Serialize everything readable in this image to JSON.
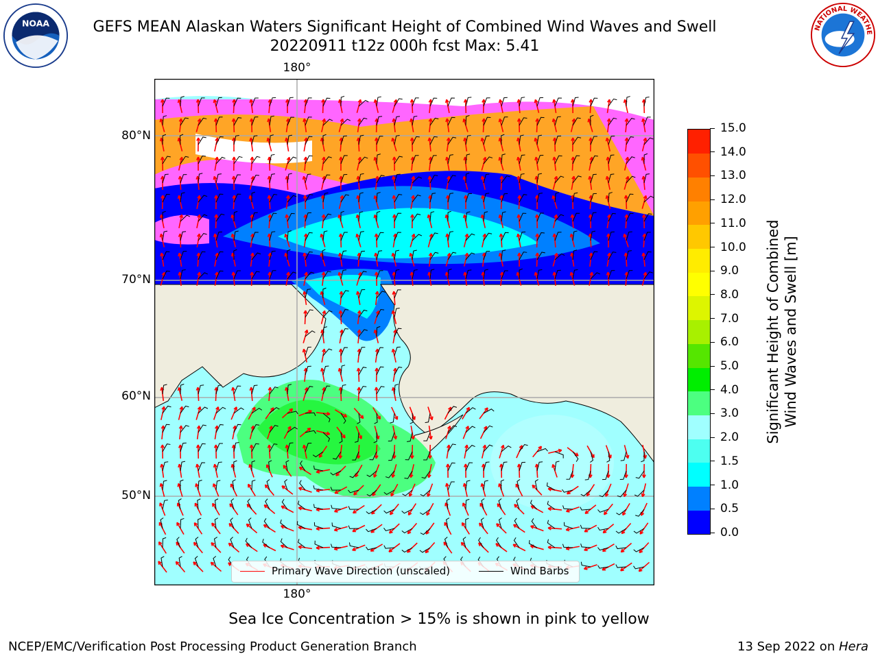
{
  "header": {
    "title_line1": "GEFS MEAN Alaskan Waters Significant Height of Combined Wind Waves and Swell",
    "title_line2": "20220911 t12z 000h fcst   Max: 5.41"
  },
  "logos": {
    "left": "noaa-logo",
    "right": "nws-logo"
  },
  "map": {
    "lon_top_label": "180°",
    "lon_bottom_label": "180°",
    "lat_labels": [
      "80°N",
      "70°N",
      "60°N",
      "50°N"
    ],
    "colors": {
      "land": "#efedde",
      "ice_pink": "#ff66ff",
      "ice_orange": "#ffb000",
      "arrow": "#ff0000",
      "barb": "#000000"
    }
  },
  "legend": {
    "items": [
      {
        "label": "Primary Wave Direction (unscaled)",
        "color": "#ff0000"
      },
      {
        "label": "Wind Barbs",
        "color": "#000000"
      }
    ]
  },
  "colorbar": {
    "label_line1": "Significant Height of Combined",
    "label_line2": "Wind Waves and Swell [m]",
    "ticks": [
      "0.0",
      "0.5",
      "1.0",
      "1.5",
      "2.0",
      "3.0",
      "4.0",
      "5.0",
      "6.0",
      "7.0",
      "8.0",
      "9.0",
      "10.0",
      "11.0",
      "12.0",
      "13.0",
      "14.0",
      "15.0"
    ],
    "colors": [
      "#0000ff",
      "#0080ff",
      "#00ffff",
      "#4dfff0",
      "#a0ffff",
      "#4cff80",
      "#00ee00",
      "#55e600",
      "#a8f000",
      "#ddf500",
      "#ffff00",
      "#ffec00",
      "#ffc800",
      "#ffa000",
      "#ff8000",
      "#ff5000",
      "#ff2000"
    ]
  },
  "note": "Sea Ice Concentration > 15% is shown in pink to yellow",
  "footer": {
    "left": "NCEP/EMC/Verification Post Processing Product Generation Branch",
    "right_prefix": "13 Sep 2022 on ",
    "right_host": "Hera"
  }
}
